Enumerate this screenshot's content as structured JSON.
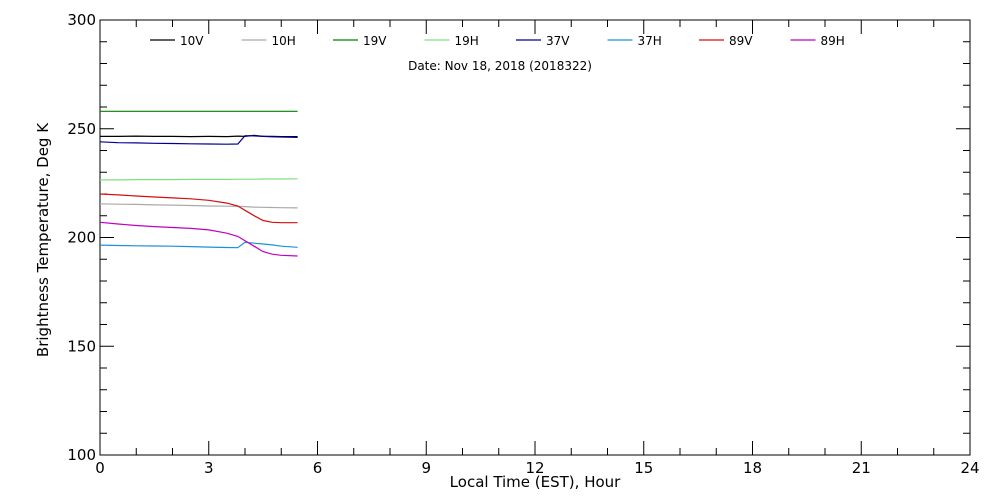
{
  "chart_data": {
    "type": "line",
    "annotation": "Date: Nov 18, 2018 (2018322)",
    "xlabel": "Local Time (EST), Hour",
    "ylabel": "Brightness Temperature, Deg K",
    "xlim": [
      0,
      24
    ],
    "ylim": [
      100,
      300
    ],
    "xticks": [
      0,
      3,
      6,
      9,
      12,
      15,
      18,
      21,
      24
    ],
    "yticks": [
      100,
      150,
      200,
      250,
      300
    ],
    "grid": false,
    "legend_position": "top",
    "x": [
      0,
      0.5,
      1,
      1.5,
      2,
      2.5,
      3,
      3.5,
      3.8,
      4,
      4.25,
      4.5,
      4.75,
      5,
      5.45
    ],
    "series": [
      {
        "name": "10V",
        "color": "#000000",
        "values": [
          246.5,
          246.5,
          246.6,
          246.5,
          246.5,
          246.4,
          246.5,
          246.4,
          246.6,
          246.5,
          247.0,
          246.5,
          246.5,
          246.4,
          246.4
        ]
      },
      {
        "name": "10H",
        "color": "#aaaaaa",
        "values": [
          215.5,
          215.3,
          215.2,
          215.0,
          214.9,
          214.7,
          214.5,
          214.4,
          214.3,
          214.2,
          214.0,
          213.9,
          213.8,
          213.7,
          213.6
        ]
      },
      {
        "name": "19V",
        "color": "#008000",
        "values": [
          258.0,
          258.0,
          258.0,
          258.0,
          258.0,
          258.0,
          258.0,
          258.0,
          258.0,
          258.0,
          258.0,
          258.0,
          258.0,
          258.0,
          258.0
        ]
      },
      {
        "name": "19H",
        "color": "#80e080",
        "values": [
          226.5,
          226.5,
          226.6,
          226.6,
          226.6,
          226.7,
          226.7,
          226.7,
          226.8,
          226.8,
          226.8,
          226.9,
          226.9,
          226.9,
          227.0
        ]
      },
      {
        "name": "37V",
        "color": "#000090",
        "values": [
          244.0,
          243.6,
          243.5,
          243.3,
          243.2,
          243.1,
          243.0,
          242.9,
          243.0,
          246.8,
          246.7,
          246.5,
          246.3,
          246.2,
          246.0
        ]
      },
      {
        "name": "37H",
        "color": "#1e90d8",
        "values": [
          196.5,
          196.3,
          196.2,
          196.1,
          196.0,
          195.8,
          195.6,
          195.4,
          195.3,
          197.8,
          197.4,
          197.0,
          196.6,
          196.0,
          195.5
        ]
      },
      {
        "name": "89V",
        "color": "#d01010",
        "values": [
          220.0,
          219.6,
          219.1,
          218.6,
          218.2,
          217.8,
          217.1,
          215.8,
          214.5,
          212.5,
          210.0,
          207.8,
          207.0,
          206.8,
          206.8
        ]
      },
      {
        "name": "89H",
        "color": "#c000c0",
        "values": [
          207.0,
          206.2,
          205.5,
          205.0,
          204.6,
          204.2,
          203.5,
          202.0,
          200.5,
          198.5,
          196.0,
          193.5,
          192.3,
          191.8,
          191.5
        ]
      }
    ]
  }
}
